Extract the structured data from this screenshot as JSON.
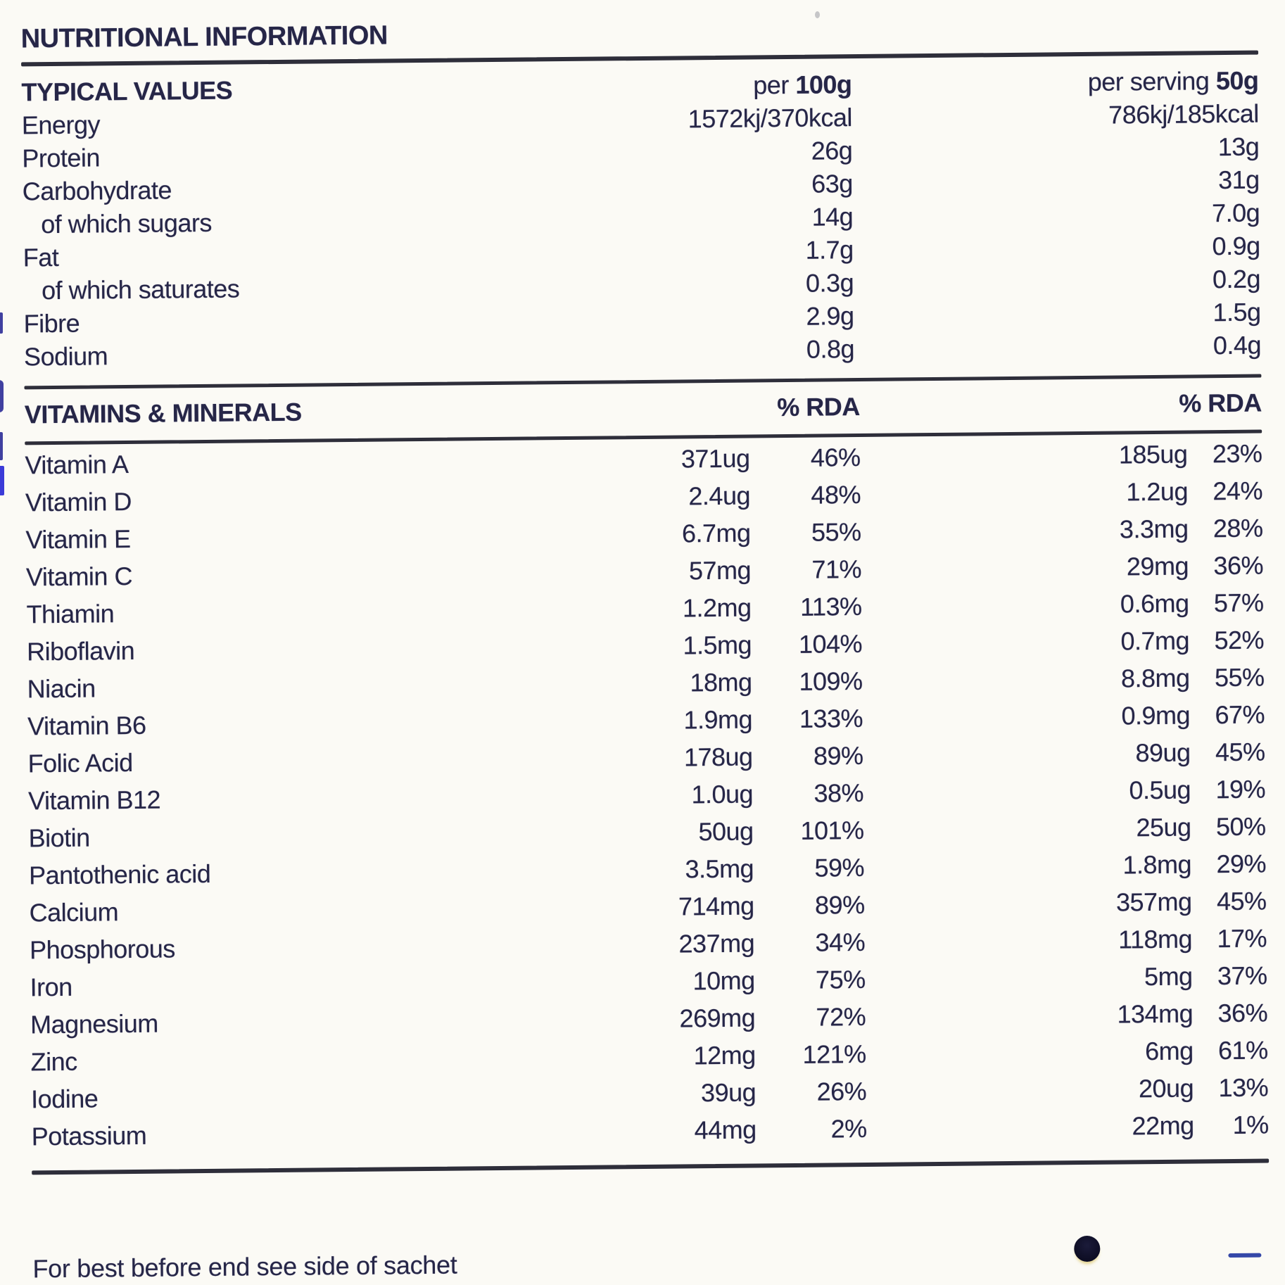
{
  "title": "NUTRITIONAL INFORMATION",
  "typical": {
    "heading": "TYPICAL VALUES",
    "per100_prefix": "per ",
    "per100_bold": "100g",
    "serving_prefix": "per serving ",
    "serving_bold": "50g",
    "rows": [
      {
        "name": "Energy",
        "per100": "1572kj/370kcal",
        "serving": "786kj/185kcal",
        "indent": false
      },
      {
        "name": "Protein",
        "per100": "26g",
        "serving": "13g",
        "indent": false
      },
      {
        "name": "Carbohydrate",
        "per100": "63g",
        "serving": "31g",
        "indent": false
      },
      {
        "name": "of which sugars",
        "per100": "14g",
        "serving": "7.0g",
        "indent": true
      },
      {
        "name": "Fat",
        "per100": "1.7g",
        "serving": "0.9g",
        "indent": false
      },
      {
        "name": "of which saturates",
        "per100": "0.3g",
        "serving": "0.2g",
        "indent": true
      },
      {
        "name": "Fibre",
        "per100": "2.9g",
        "serving": "1.5g",
        "indent": false
      },
      {
        "name": "Sodium",
        "per100": "0.8g",
        "serving": "0.4g",
        "indent": false
      }
    ]
  },
  "vitamins": {
    "heading": "VITAMINS & MINERALS",
    "rda_header": "% RDA",
    "rows": [
      {
        "name": "Vitamin A",
        "amount100": "371ug",
        "rda100": "46%",
        "amountServing": "185ug",
        "rdaServing": "23%"
      },
      {
        "name": "Vitamin D",
        "amount100": "2.4ug",
        "rda100": "48%",
        "amountServing": "1.2ug",
        "rdaServing": "24%"
      },
      {
        "name": "Vitamin E",
        "amount100": "6.7mg",
        "rda100": "55%",
        "amountServing": "3.3mg",
        "rdaServing": "28%"
      },
      {
        "name": "Vitamin C",
        "amount100": "57mg",
        "rda100": "71%",
        "amountServing": "29mg",
        "rdaServing": "36%"
      },
      {
        "name": "Thiamin",
        "amount100": "1.2mg",
        "rda100": "113%",
        "amountServing": "0.6mg",
        "rdaServing": "57%"
      },
      {
        "name": "Riboflavin",
        "amount100": "1.5mg",
        "rda100": "104%",
        "amountServing": "0.7mg",
        "rdaServing": "52%"
      },
      {
        "name": "Niacin",
        "amount100": "18mg",
        "rda100": "109%",
        "amountServing": "8.8mg",
        "rdaServing": "55%"
      },
      {
        "name": "Vitamin B6",
        "amount100": "1.9mg",
        "rda100": "133%",
        "amountServing": "0.9mg",
        "rdaServing": "67%"
      },
      {
        "name": "Folic Acid",
        "amount100": "178ug",
        "rda100": "89%",
        "amountServing": "89ug",
        "rdaServing": "45%"
      },
      {
        "name": "Vitamin B12",
        "amount100": "1.0ug",
        "rda100": "38%",
        "amountServing": "0.5ug",
        "rdaServing": "19%"
      },
      {
        "name": "Biotin",
        "amount100": "50ug",
        "rda100": "101%",
        "amountServing": "25ug",
        "rdaServing": "50%"
      },
      {
        "name": "Pantothenic acid",
        "amount100": "3.5mg",
        "rda100": "59%",
        "amountServing": "1.8mg",
        "rdaServing": "29%"
      },
      {
        "name": "Calcium",
        "amount100": "714mg",
        "rda100": "89%",
        "amountServing": "357mg",
        "rdaServing": "45%"
      },
      {
        "name": "Phosphorous",
        "amount100": "237mg",
        "rda100": "34%",
        "amountServing": "118mg",
        "rdaServing": "17%"
      },
      {
        "name": "Iron",
        "amount100": "10mg",
        "rda100": "75%",
        "amountServing": "5mg",
        "rdaServing": "37%"
      },
      {
        "name": "Magnesium",
        "amount100": "269mg",
        "rda100": "72%",
        "amountServing": "134mg",
        "rdaServing": "36%"
      },
      {
        "name": "Zinc",
        "amount100": "12mg",
        "rda100": "121%",
        "amountServing": "6mg",
        "rdaServing": "61%"
      },
      {
        "name": "Iodine",
        "amount100": "39ug",
        "rda100": "26%",
        "amountServing": "20ug",
        "rdaServing": "13%"
      },
      {
        "name": "Potassium",
        "amount100": "44mg",
        "rda100": "2%",
        "amountServing": "22mg",
        "rdaServing": "1%"
      }
    ]
  },
  "footer": "For best before end see side of sachet",
  "colors": {
    "ink": "#262647",
    "paper": "#fbfaf5",
    "artifact_blue": "#3b3bd8",
    "rule": "#2e2e3a"
  }
}
